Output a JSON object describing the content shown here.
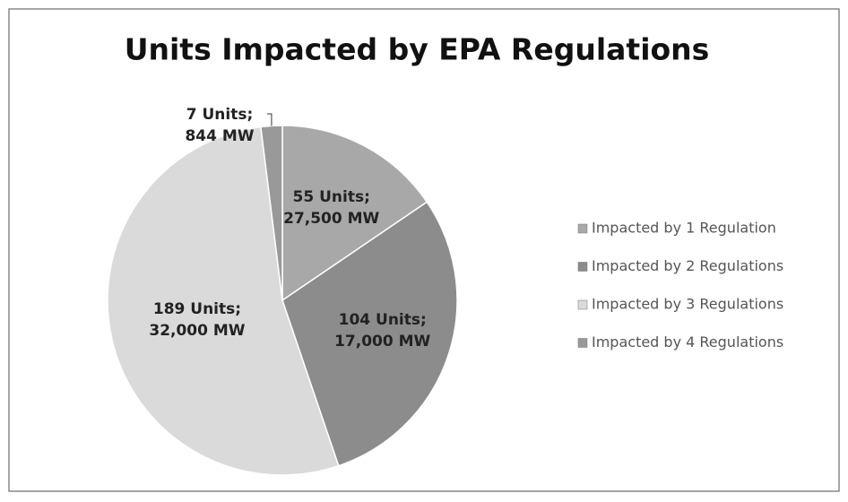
{
  "chart_data": {
    "type": "pie",
    "title": "Units Impacted by EPA Regulations",
    "categories": [
      "Impacted by 1 Regulation",
      "Impacted by 2 Regulations",
      "Impacted by 3 Regulations",
      "Impacted by 4 Regulations"
    ],
    "values": [
      55,
      104,
      189,
      7
    ],
    "value_labels": [
      "55 Units; 27,500 MW",
      "104 Units; 17,000 MW",
      "189 Units; 32,000 MW",
      "7 Units; 844 MW"
    ],
    "colors": [
      "#a8a8a8",
      "#8c8c8c",
      "#dadada",
      "#999999"
    ],
    "legend": "right"
  }
}
